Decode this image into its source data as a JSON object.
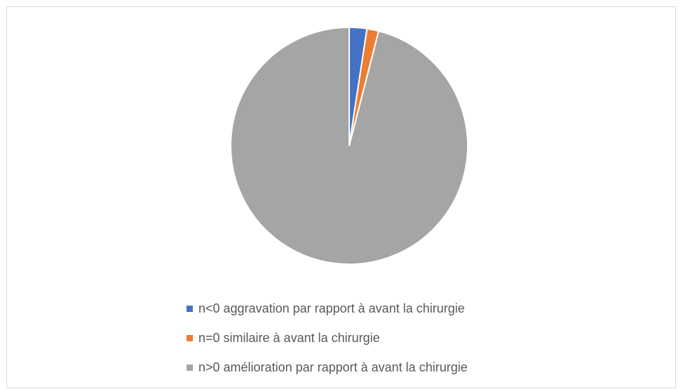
{
  "chart_data": {
    "type": "pie",
    "title": "",
    "series": [
      {
        "values": [
          2.4,
          1.6,
          96.0
        ]
      }
    ],
    "categories": [
      "n<0 aggravation par rapport à avant la chirurgie",
      "n=0 similaire à avant la chirurgie",
      "n>0 amélioration par rapport à avant la chirurgie"
    ],
    "colors": [
      "#4472c4",
      "#ed7d31",
      "#a5a5a5"
    ],
    "start_angle": "12 o'clock",
    "direction": "clockwise",
    "legend_position": "bottom",
    "slice_border_color": "#ffffff"
  }
}
